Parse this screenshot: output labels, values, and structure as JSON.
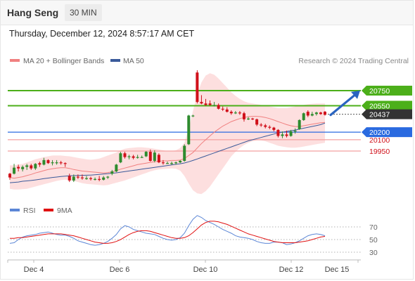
{
  "header": {
    "symbol": "Hang Seng",
    "timeframe": "30 MIN"
  },
  "date_line": "Thursday, December 12, 2024 8:57:17 AM CET",
  "legend": {
    "bollinger": "MA 20 + Bollinger Bands",
    "ma50": "MA 50",
    "credit": "Research © 2024 Trading Central",
    "rsi": "RSI",
    "rsi_ma": "9MA"
  },
  "colors": {
    "bullish": "#2e8b2e",
    "bearish": "#d0101a",
    "bands_fill": "#fdd9d9",
    "ma20": "#f08080",
    "ma50": "#3a5a9a",
    "resistance": "#4caf1a",
    "support": "#2a6ae0",
    "minor_level": "#f4a0a0",
    "last_price": "#333333",
    "rsi": "#5b86d6",
    "rsi_ma": "#e01010"
  },
  "levels": {
    "r2": "20750",
    "r1": "20550",
    "last": "20437",
    "s1": "20200",
    "s2": "20100",
    "s3": "19950"
  },
  "chart_data": [
    {
      "type": "candlestick",
      "x_labels": [
        "Dec 4",
        "Dec 6",
        "Dec 10",
        "Dec 12",
        "Dec 15"
      ],
      "ylim": [
        19350,
        21100
      ],
      "levels": [
        20750,
        20550,
        20437,
        20200,
        20100,
        19950
      ],
      "forecast": {
        "from": 20437,
        "to": 20760,
        "direction": "up"
      },
      "candles": [
        {
          "o": 19650,
          "h": 19660,
          "l": 19570,
          "c": 19600
        },
        {
          "o": 19650,
          "h": 19780,
          "l": 19640,
          "c": 19730
        },
        {
          "o": 19740,
          "h": 19770,
          "l": 19680,
          "c": 19720
        },
        {
          "o": 19710,
          "h": 19760,
          "l": 19680,
          "c": 19740
        },
        {
          "o": 19740,
          "h": 19780,
          "l": 19700,
          "c": 19760
        },
        {
          "o": 19760,
          "h": 19780,
          "l": 19700,
          "c": 19720
        },
        {
          "o": 19720,
          "h": 19790,
          "l": 19700,
          "c": 19780
        },
        {
          "o": 19790,
          "h": 19810,
          "l": 19740,
          "c": 19770
        },
        {
          "o": 19770,
          "h": 19860,
          "l": 19760,
          "c": 19830
        },
        {
          "o": 19830,
          "h": 19840,
          "l": 19780,
          "c": 19790
        },
        {
          "o": 19790,
          "h": 19830,
          "l": 19760,
          "c": 19800
        },
        {
          "o": 19800,
          "h": 19830,
          "l": 19770,
          "c": 19800
        },
        {
          "o": 19800,
          "h": 19820,
          "l": 19770,
          "c": 19790
        },
        {
          "o": 19790,
          "h": 19800,
          "l": 19740,
          "c": 19780
        },
        {
          "o": 19620,
          "h": 19650,
          "l": 19540,
          "c": 19560
        },
        {
          "o": 19560,
          "h": 19640,
          "l": 19540,
          "c": 19610
        },
        {
          "o": 19610,
          "h": 19640,
          "l": 19580,
          "c": 19600
        },
        {
          "o": 19600,
          "h": 19640,
          "l": 19570,
          "c": 19590
        },
        {
          "o": 19590,
          "h": 19620,
          "l": 19570,
          "c": 19590
        },
        {
          "o": 19590,
          "h": 19610,
          "l": 19560,
          "c": 19580
        },
        {
          "o": 19580,
          "h": 19600,
          "l": 19560,
          "c": 19580
        },
        {
          "o": 19580,
          "h": 19620,
          "l": 19550,
          "c": 19570
        },
        {
          "o": 19570,
          "h": 19620,
          "l": 19560,
          "c": 19600
        },
        {
          "o": 19600,
          "h": 19620,
          "l": 19580,
          "c": 19610
        },
        {
          "o": 19650,
          "h": 19700,
          "l": 19630,
          "c": 19680
        },
        {
          "o": 19680,
          "h": 19780,
          "l": 19670,
          "c": 19770
        },
        {
          "o": 19800,
          "h": 19940,
          "l": 19790,
          "c": 19920
        },
        {
          "o": 19920,
          "h": 19940,
          "l": 19850,
          "c": 19870
        },
        {
          "o": 19870,
          "h": 19900,
          "l": 19840,
          "c": 19880
        },
        {
          "o": 19880,
          "h": 19900,
          "l": 19840,
          "c": 19860
        },
        {
          "o": 19860,
          "h": 19900,
          "l": 19850,
          "c": 19870
        },
        {
          "o": 19870,
          "h": 19890,
          "l": 19860,
          "c": 19870
        },
        {
          "o": 19880,
          "h": 19950,
          "l": 19870,
          "c": 19940
        },
        {
          "o": 19940,
          "h": 19970,
          "l": 19810,
          "c": 19820
        },
        {
          "o": 19820,
          "h": 19960,
          "l": 19800,
          "c": 19930
        },
        {
          "o": 19900,
          "h": 19920,
          "l": 19790,
          "c": 19800
        },
        {
          "o": 19800,
          "h": 19830,
          "l": 19770,
          "c": 19790
        },
        {
          "o": 19790,
          "h": 19810,
          "l": 19780,
          "c": 19790
        },
        {
          "o": 19790,
          "h": 19810,
          "l": 19770,
          "c": 19790
        },
        {
          "o": 19790,
          "h": 19810,
          "l": 19770,
          "c": 19800
        },
        {
          "o": 19800,
          "h": 19830,
          "l": 19790,
          "c": 19820
        },
        {
          "o": 19820,
          "h": 20040,
          "l": 19810,
          "c": 20020
        },
        {
          "o": 20040,
          "h": 20430,
          "l": 20030,
          "c": 20420
        },
        {
          "o": 20420,
          "h": 20430,
          "l": 20400,
          "c": 20420
        },
        {
          "o": 20990,
          "h": 21020,
          "l": 20580,
          "c": 20600
        },
        {
          "o": 20600,
          "h": 20690,
          "l": 20570,
          "c": 20580
        },
        {
          "o": 20580,
          "h": 20640,
          "l": 20550,
          "c": 20560
        },
        {
          "o": 20580,
          "h": 20620,
          "l": 20550,
          "c": 20560
        },
        {
          "o": 20560,
          "h": 20600,
          "l": 20540,
          "c": 20560
        },
        {
          "o": 20560,
          "h": 20580,
          "l": 20500,
          "c": 20510
        },
        {
          "o": 20510,
          "h": 20540,
          "l": 20480,
          "c": 20500
        },
        {
          "o": 20500,
          "h": 20530,
          "l": 20460,
          "c": 20470
        },
        {
          "o": 20470,
          "h": 20490,
          "l": 20430,
          "c": 20450
        },
        {
          "o": 20450,
          "h": 20480,
          "l": 20440,
          "c": 20460
        },
        {
          "o": 20460,
          "h": 20480,
          "l": 20430,
          "c": 20450
        },
        {
          "o": 20450,
          "h": 20470,
          "l": 20340,
          "c": 20370
        },
        {
          "o": 20370,
          "h": 20400,
          "l": 20360,
          "c": 20380
        },
        {
          "o": 20380,
          "h": 20390,
          "l": 20360,
          "c": 20370
        },
        {
          "o": 20370,
          "h": 20380,
          "l": 20280,
          "c": 20300
        },
        {
          "o": 20300,
          "h": 20320,
          "l": 20270,
          "c": 20290
        },
        {
          "o": 20290,
          "h": 20310,
          "l": 20250,
          "c": 20270
        },
        {
          "o": 20270,
          "h": 20290,
          "l": 20240,
          "c": 20260
        },
        {
          "o": 20260,
          "h": 20270,
          "l": 20210,
          "c": 20230
        },
        {
          "o": 20230,
          "h": 20240,
          "l": 20130,
          "c": 20150
        },
        {
          "o": 20150,
          "h": 20210,
          "l": 20120,
          "c": 20170
        },
        {
          "o": 20170,
          "h": 20220,
          "l": 20130,
          "c": 20150
        },
        {
          "o": 20150,
          "h": 20230,
          "l": 20140,
          "c": 20210
        },
        {
          "o": 20210,
          "h": 20250,
          "l": 20180,
          "c": 20220
        },
        {
          "o": 20240,
          "h": 20370,
          "l": 20230,
          "c": 20360
        },
        {
          "o": 20360,
          "h": 20460,
          "l": 20350,
          "c": 20450
        },
        {
          "o": 20470,
          "h": 20490,
          "l": 20400,
          "c": 20420
        },
        {
          "o": 20420,
          "h": 20470,
          "l": 20410,
          "c": 20440
        },
        {
          "o": 20440,
          "h": 20470,
          "l": 20420,
          "c": 20460
        },
        {
          "o": 20460,
          "h": 20470,
          "l": 20430,
          "c": 20440
        },
        {
          "o": 20470,
          "h": 20480,
          "l": 20420,
          "c": 20430
        }
      ],
      "ma20": [
        19600,
        19590,
        19600,
        19610,
        19625,
        19640,
        19660,
        19675,
        19690,
        19705,
        19715,
        19725,
        19730,
        19730,
        19720,
        19705,
        19695,
        19685,
        19680,
        19675,
        19670,
        19665,
        19660,
        19665,
        19675,
        19690,
        19710,
        19725,
        19740,
        19755,
        19770,
        19780,
        19790,
        19800,
        19810,
        19815,
        19820,
        19820,
        19825,
        19825,
        19830,
        19850,
        19890,
        19930,
        19990,
        20050,
        20100,
        20150,
        20200,
        20240,
        20280,
        20310,
        20340,
        20360,
        20380,
        20395,
        20405,
        20410,
        20410,
        20405,
        20395,
        20380,
        20360,
        20340,
        20320,
        20300,
        20285,
        20275,
        20275,
        20285,
        20295,
        20305,
        20315,
        20325,
        20330
      ],
      "ma50": [
        19530,
        19535,
        19540,
        19550,
        19555,
        19560,
        19568,
        19576,
        19584,
        19592,
        19600,
        19606,
        19612,
        19618,
        19622,
        19624,
        19626,
        19628,
        19630,
        19632,
        19636,
        19640,
        19645,
        19650,
        19656,
        19662,
        19670,
        19678,
        19686,
        19694,
        19702,
        19710,
        19718,
        19726,
        19734,
        19742,
        19750,
        19758,
        19766,
        19774,
        19782,
        19792,
        19808,
        19825,
        19845,
        19865,
        19885,
        19905,
        19925,
        19945,
        19965,
        19985,
        20005,
        20025,
        20045,
        20065,
        20085,
        20100,
        20115,
        20130,
        20145,
        20160,
        20175,
        20190,
        20200,
        20210,
        20220,
        20228,
        20240,
        20252,
        20264,
        20276,
        20288,
        20300,
        20320
      ],
      "bb_upper": [
        19760,
        19760,
        19770,
        19780,
        19800,
        19820,
        19840,
        19855,
        19870,
        19880,
        19890,
        19890,
        19890,
        19885,
        19880,
        19870,
        19860,
        19850,
        19840,
        19835,
        19840,
        19850,
        19870,
        19890,
        19910,
        19930,
        19960,
        19980,
        19990,
        19995,
        20000,
        20000,
        19995,
        19990,
        19980,
        19970,
        19960,
        19950,
        19950,
        19960,
        19990,
        20060,
        20250,
        20480,
        20700,
        20860,
        20950,
        20980,
        20960,
        20910,
        20850,
        20790,
        20730,
        20680,
        20640,
        20610,
        20590,
        20580,
        20570,
        20560,
        20550,
        20540,
        20530,
        20520,
        20520,
        20520,
        20530,
        20540,
        20550,
        20560,
        20570,
        20575,
        20580,
        20580,
        20580
      ],
      "bb_lower": [
        19450,
        19440,
        19440,
        19445,
        19450,
        19465,
        19480,
        19495,
        19510,
        19525,
        19540,
        19555,
        19565,
        19570,
        19565,
        19555,
        19540,
        19525,
        19515,
        19510,
        19505,
        19500,
        19495,
        19500,
        19515,
        19530,
        19545,
        19560,
        19580,
        19600,
        19620,
        19640,
        19660,
        19680,
        19695,
        19705,
        19710,
        19715,
        19720,
        19715,
        19690,
        19620,
        19520,
        19430,
        19390,
        19380,
        19420,
        19480,
        19560,
        19640,
        19720,
        19800,
        19880,
        19940,
        19990,
        20030,
        20060,
        20080,
        20090,
        20090,
        20080,
        20060,
        20040,
        20020,
        20010,
        20000,
        19995,
        19995,
        20000,
        20010,
        20020,
        20030,
        20040,
        20050,
        20060
      ]
    },
    {
      "type": "line",
      "ylim": [
        15,
        95
      ],
      "y_ticks": [
        70,
        50,
        30
      ],
      "series": [
        {
          "name": "RSI",
          "values": [
            44,
            45,
            50,
            54,
            56,
            57,
            58,
            60,
            61,
            62,
            60,
            58,
            57,
            57,
            55,
            52,
            48,
            46,
            44,
            42,
            41,
            42,
            44,
            47,
            52,
            58,
            67,
            72,
            70,
            66,
            64,
            62,
            60,
            59,
            58,
            55,
            52,
            50,
            49,
            50,
            53,
            60,
            72,
            82,
            88,
            85,
            80,
            77,
            74,
            70,
            66,
            63,
            60,
            56,
            54,
            53,
            52,
            50,
            47,
            45,
            44,
            44,
            46,
            46,
            45,
            42,
            43,
            45,
            48,
            52,
            56,
            58,
            59,
            58,
            56
          ]
        },
        {
          "name": "9MA",
          "values": [
            52,
            52,
            53,
            53,
            54,
            55,
            56,
            57,
            58,
            59,
            59,
            59,
            59,
            58,
            57,
            56,
            54,
            52,
            50,
            48,
            46,
            45,
            44,
            44,
            45,
            47,
            50,
            54,
            58,
            61,
            63,
            64,
            64,
            63,
            61,
            59,
            57,
            55,
            53,
            52,
            52,
            53,
            56,
            61,
            67,
            73,
            77,
            79,
            79,
            78,
            76,
            74,
            71,
            68,
            65,
            62,
            59,
            57,
            55,
            53,
            51,
            49,
            47,
            46,
            45,
            45,
            45,
            45,
            46,
            47,
            48,
            50,
            52,
            54,
            55
          ]
        }
      ]
    }
  ]
}
